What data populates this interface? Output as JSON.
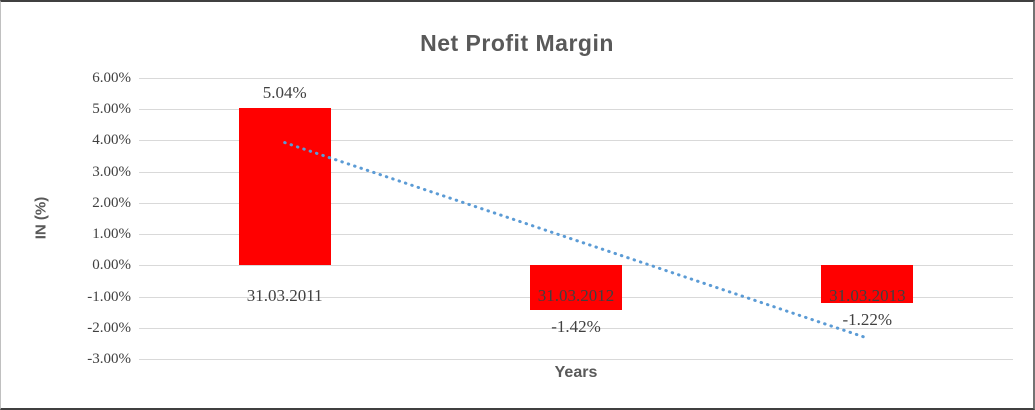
{
  "chart_data": {
    "type": "bar",
    "title": "Net Profit Margin",
    "xlabel": "Years",
    "ylabel": "IN (%)",
    "categories": [
      "31.03.2011",
      "31.03.2012",
      "31.03.2013"
    ],
    "values": [
      5.04,
      -1.42,
      -1.22
    ],
    "data_labels": [
      "5.04%",
      "-1.42%",
      "-1.22%"
    ],
    "y_ticks": [
      {
        "label": "6.00%",
        "value": 6
      },
      {
        "label": "5.00%",
        "value": 5
      },
      {
        "label": "4.00%",
        "value": 4
      },
      {
        "label": "3.00%",
        "value": 3
      },
      {
        "label": "2.00%",
        "value": 2
      },
      {
        "label": "1.00%",
        "value": 1
      },
      {
        "label": "0.00%",
        "value": 0
      },
      {
        "label": "-1.00%",
        "value": -1
      },
      {
        "label": "-2.00%",
        "value": -2
      },
      {
        "label": "-3.00%",
        "value": -3
      }
    ],
    "ylim": [
      -3,
      6
    ],
    "grid": true,
    "legend": false,
    "trendline": {
      "type": "linear",
      "style": "dotted",
      "start_value": 3.93,
      "end_value": -2.33
    },
    "colors": {
      "bar": "#ff0000",
      "trendline": "#5b9bd5",
      "gridline": "#d9d9d9",
      "label_text": "#404040",
      "title_text": "#595959"
    }
  }
}
